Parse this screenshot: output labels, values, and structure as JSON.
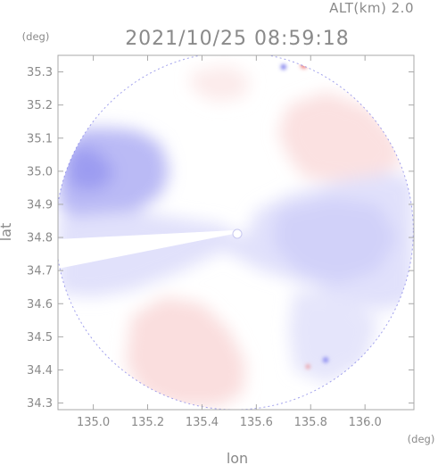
{
  "chart_data": {
    "type": "heatmap",
    "title": "2021/10/25 08:59:18",
    "subtitle": "ALT(km) 2.0",
    "xlabel": "lon",
    "ylabel": "lat",
    "x_unit": "(deg)",
    "y_unit": "(deg)",
    "xlim": [
      134.87,
      136.18
    ],
    "ylim": [
      34.28,
      35.35
    ],
    "xticks": [
      135.0,
      135.2,
      135.4,
      135.6,
      135.8,
      136.0
    ],
    "xtick_labels": [
      "135.0",
      "135.2",
      "135.4",
      "135.6",
      "135.8",
      "136.0"
    ],
    "yticks": [
      34.3,
      34.4,
      34.5,
      34.6,
      34.7,
      34.8,
      34.9,
      35.0,
      35.1,
      35.2,
      35.3
    ],
    "ytick_labels": [
      "34.3",
      "34.4",
      "34.5",
      "34.6",
      "34.7",
      "34.8",
      "34.9",
      "35.0",
      "35.1",
      "35.2",
      "35.3"
    ],
    "grid": false,
    "colorscale": {
      "negative": "#5a5ae8",
      "zero": "#ffffff",
      "positive": "#e85a5a"
    },
    "radar_center": [
      135.52,
      34.82
    ],
    "regions": [
      {
        "sign": "negative",
        "intensity": 0.42,
        "polygon": [
          [
            134.95,
            35.13
          ],
          [
            135.08,
            35.13
          ],
          [
            135.17,
            35.12
          ],
          [
            135.25,
            35.08
          ],
          [
            135.28,
            35.0
          ],
          [
            135.25,
            34.93
          ],
          [
            135.16,
            34.88
          ],
          [
            135.05,
            34.86
          ],
          [
            134.93,
            34.85
          ],
          [
            134.87,
            34.9
          ],
          [
            134.87,
            35.04
          ]
        ]
      },
      {
        "sign": "negative",
        "intensity": 0.6,
        "polygon": [
          [
            134.92,
            35.08
          ],
          [
            135.02,
            35.06
          ],
          [
            135.08,
            35.0
          ],
          [
            135.04,
            34.95
          ],
          [
            134.96,
            34.94
          ],
          [
            134.9,
            34.97
          ]
        ]
      },
      {
        "sign": "negative",
        "intensity": 0.18,
        "polygon": [
          [
            134.87,
            34.86
          ],
          [
            135.16,
            34.88
          ],
          [
            135.3,
            34.86
          ],
          [
            135.46,
            34.84
          ],
          [
            135.56,
            34.8
          ],
          [
            135.6,
            34.88
          ],
          [
            135.72,
            34.93
          ],
          [
            135.86,
            34.96
          ],
          [
            136.05,
            35.0
          ],
          [
            136.18,
            34.98
          ],
          [
            136.18,
            34.6
          ],
          [
            136.05,
            34.58
          ],
          [
            135.9,
            34.61
          ],
          [
            135.78,
            34.66
          ],
          [
            135.62,
            34.7
          ],
          [
            135.48,
            34.76
          ],
          [
            135.3,
            34.69
          ],
          [
            135.14,
            34.64
          ],
          [
            135.0,
            34.62
          ],
          [
            134.87,
            34.63
          ]
        ]
      },
      {
        "sign": "negative",
        "intensity": 0.28,
        "polygon": [
          [
            135.68,
            34.88
          ],
          [
            135.88,
            34.92
          ],
          [
            136.05,
            34.9
          ],
          [
            136.12,
            34.8
          ],
          [
            136.05,
            34.7
          ],
          [
            135.9,
            34.66
          ],
          [
            135.75,
            34.7
          ],
          [
            135.66,
            34.78
          ]
        ]
      },
      {
        "sign": "negative",
        "intensity": 0.16,
        "polygon": [
          [
            135.74,
            34.64
          ],
          [
            135.92,
            34.62
          ],
          [
            136.05,
            34.55
          ],
          [
            136.0,
            34.42
          ],
          [
            135.86,
            34.36
          ],
          [
            135.74,
            34.4
          ],
          [
            135.72,
            34.52
          ]
        ]
      },
      {
        "sign": "positive",
        "intensity": 0.18,
        "polygon": [
          [
            135.72,
            35.2
          ],
          [
            135.86,
            35.24
          ],
          [
            136.02,
            35.19
          ],
          [
            136.12,
            35.1
          ],
          [
            136.14,
            35.02
          ],
          [
            136.05,
            34.99
          ],
          [
            135.88,
            34.97
          ],
          [
            135.78,
            34.98
          ],
          [
            135.72,
            35.04
          ],
          [
            135.68,
            35.12
          ]
        ]
      },
      {
        "sign": "positive",
        "intensity": 0.2,
        "polygon": [
          [
            135.14,
            34.56
          ],
          [
            135.26,
            34.62
          ],
          [
            135.4,
            34.6
          ],
          [
            135.5,
            34.52
          ],
          [
            135.56,
            34.42
          ],
          [
            135.55,
            34.33
          ],
          [
            135.46,
            34.29
          ],
          [
            135.3,
            34.29
          ],
          [
            135.18,
            34.33
          ],
          [
            135.12,
            34.42
          ]
        ]
      },
      {
        "sign": "positive",
        "intensity": 0.12,
        "polygon": [
          [
            135.36,
            35.3
          ],
          [
            135.5,
            35.32
          ],
          [
            135.58,
            35.28
          ],
          [
            135.55,
            35.22
          ],
          [
            135.44,
            35.21
          ],
          [
            135.36,
            35.25
          ]
        ]
      }
    ],
    "features": [
      {
        "sign": "positive",
        "intensity": 0.85,
        "at": [
          135.775,
          35.32
        ],
        "r": 0.012
      },
      {
        "sign": "negative",
        "intensity": 0.85,
        "at": [
          135.7,
          35.315
        ],
        "r": 0.01
      },
      {
        "sign": "negative",
        "intensity": 0.75,
        "at": [
          135.855,
          34.43
        ],
        "r": 0.01
      },
      {
        "sign": "positive",
        "intensity": 0.8,
        "at": [
          135.79,
          34.41
        ],
        "r": 0.007
      }
    ]
  }
}
